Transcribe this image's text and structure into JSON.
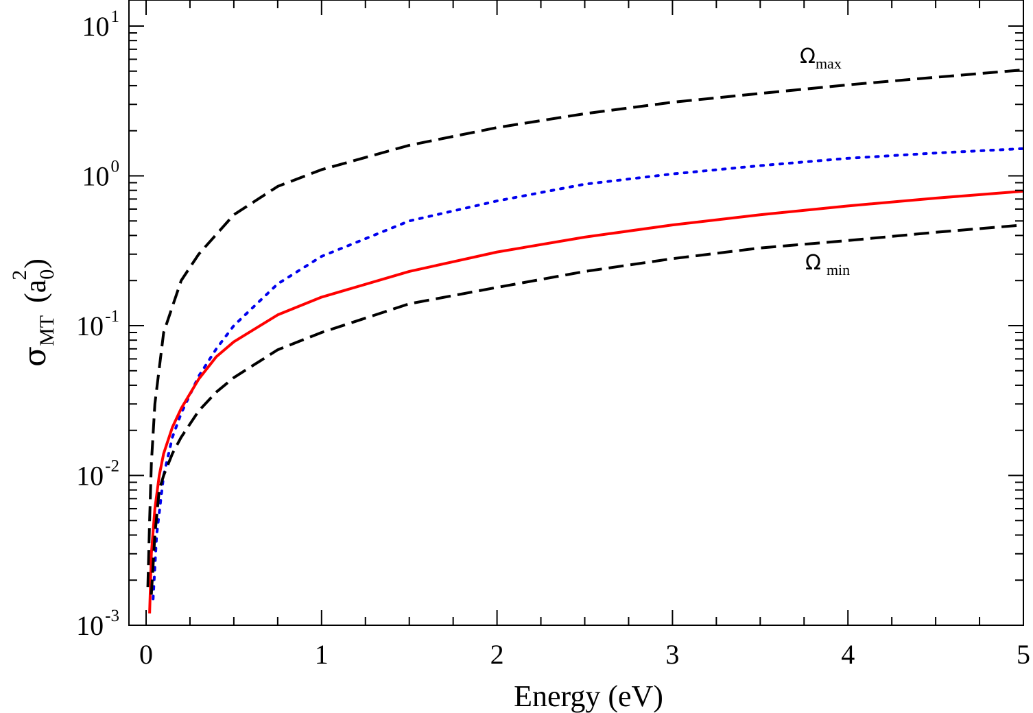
{
  "chart_data": {
    "type": "line",
    "xlabel": "Energy (eV)",
    "ylabel": {
      "symbol": "σ",
      "subscript": "MT",
      "unit_open": "(a",
      "unit_sub": "0",
      "unit_sup": "2",
      "unit_close": ")"
    },
    "xlim": [
      0,
      5
    ],
    "ylim": [
      0.001,
      15
    ],
    "yscale": "log",
    "grid": false,
    "x_ticks": [
      "0",
      "1",
      "2",
      "3",
      "4",
      "5"
    ],
    "y_ticks": [
      {
        "base": "10",
        "exp": "-3",
        "value": 0.001
      },
      {
        "base": "10",
        "exp": "-2",
        "value": 0.01
      },
      {
        "base": "10",
        "exp": "-1",
        "value": 0.1
      },
      {
        "base": "10",
        "exp": "0",
        "value": 1
      },
      {
        "base": "10",
        "exp": "1",
        "value": 10
      }
    ],
    "series": [
      {
        "color": "#000000",
        "style": "dashed",
        "x": [
          0.01,
          0.02,
          0.03,
          0.05,
          0.1,
          0.2,
          0.3,
          0.5,
          0.75,
          1.0,
          1.5,
          2.0,
          2.5,
          3.0,
          3.5,
          4.0,
          4.5,
          5.0
        ],
        "y": [
          0.0018,
          0.005,
          0.012,
          0.03,
          0.09,
          0.2,
          0.3,
          0.55,
          0.85,
          1.1,
          1.6,
          2.1,
          2.6,
          3.1,
          3.55,
          4.05,
          4.55,
          5.1
        ]
      },
      {
        "color": "#0000ee",
        "style": "dotted",
        "x": [
          0.04,
          0.06,
          0.1,
          0.15,
          0.2,
          0.3,
          0.4,
          0.5,
          0.75,
          1.0,
          1.5,
          2.0,
          2.5,
          3.0,
          3.5,
          4.0,
          4.5,
          5.0
        ],
        "y": [
          0.0015,
          0.004,
          0.01,
          0.018,
          0.026,
          0.046,
          0.07,
          0.1,
          0.19,
          0.29,
          0.5,
          0.68,
          0.88,
          1.03,
          1.17,
          1.31,
          1.42,
          1.52
        ]
      },
      {
        "color": "#ff0000",
        "style": "solid",
        "x": [
          0.02,
          0.03,
          0.05,
          0.075,
          0.1,
          0.15,
          0.2,
          0.3,
          0.4,
          0.5,
          0.75,
          1.0,
          1.5,
          2.0,
          2.5,
          3.0,
          3.5,
          4.0,
          4.5,
          5.0
        ],
        "y": [
          0.0012,
          0.003,
          0.006,
          0.01,
          0.014,
          0.021,
          0.028,
          0.044,
          0.062,
          0.078,
          0.118,
          0.155,
          0.23,
          0.31,
          0.39,
          0.47,
          0.55,
          0.63,
          0.71,
          0.79
        ]
      },
      {
        "color": "#000000",
        "style": "dashed",
        "x": [
          0.03,
          0.05,
          0.075,
          0.1,
          0.15,
          0.2,
          0.3,
          0.4,
          0.5,
          0.75,
          1.0,
          1.5,
          2.0,
          2.5,
          3.0,
          3.5,
          4.0,
          4.5,
          5.0
        ],
        "y": [
          0.0016,
          0.004,
          0.008,
          0.01,
          0.014,
          0.018,
          0.027,
          0.036,
          0.045,
          0.069,
          0.09,
          0.14,
          0.18,
          0.23,
          0.28,
          0.33,
          0.37,
          0.42,
          0.47
        ]
      }
    ],
    "annotations": [
      {
        "symbol": "Ω",
        "sub": "max",
        "x": 3.73,
        "y": 6.5
      },
      {
        "symbol": "Ω",
        "sub": "min",
        "x": 3.78,
        "y": 0.26
      }
    ]
  }
}
